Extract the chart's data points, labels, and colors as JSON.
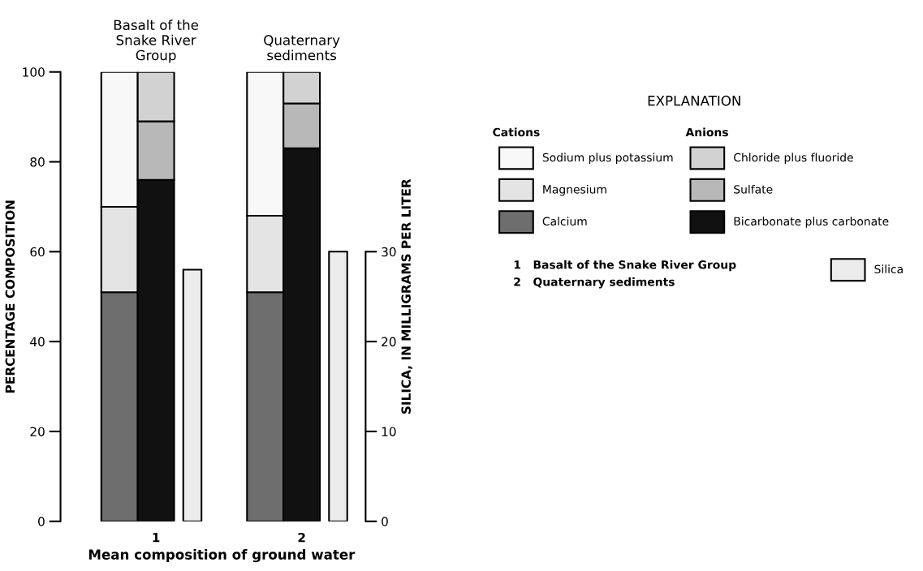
{
  "chart_data": {
    "type": "bar",
    "stacked": true,
    "categories": [
      null,
      "1",
      null,
      null,
      null,
      "2",
      null
    ],
    "series": [
      {
        "name": "Calcium",
        "color": "#6e6e6e",
        "values": [
          51,
          null,
          null,
          null,
          51,
          null,
          null
        ]
      },
      {
        "name": "Magnesium",
        "color": "#e4e4e4",
        "values": [
          19,
          null,
          null,
          null,
          17,
          null,
          null
        ]
      },
      {
        "name": "Sodium plus potassium",
        "color": "#f8f8f8",
        "values": [
          30,
          null,
          null,
          null,
          32,
          null,
          null
        ]
      },
      {
        "name": "Bicarbonate plus carbonate",
        "color": "#111111",
        "values": [
          null,
          76,
          null,
          null,
          null,
          83,
          null
        ]
      },
      {
        "name": "Sulfate",
        "color": "#b8b8b8",
        "values": [
          null,
          13,
          null,
          null,
          null,
          10,
          null
        ]
      },
      {
        "name": "Chloride plus fluoride",
        "color": "#d2d2d2",
        "values": [
          null,
          11,
          null,
          null,
          null,
          7,
          null
        ]
      },
      {
        "name": "Silica",
        "color": "#ececec",
        "axis": "y2",
        "values": [
          null,
          null,
          28,
          null,
          null,
          null,
          30
        ]
      }
    ],
    "xlabel": "Mean composition of ground water",
    "ylabel": "PERCENTAGE COMPOSITION",
    "y2label": "SILICA, IN MILLIGRAMS PER LITER",
    "ylim": [
      0,
      100
    ],
    "yticks": [
      0,
      20,
      40,
      60,
      80,
      100
    ],
    "y2lim": [
      0,
      50
    ],
    "y2ticks": [
      0,
      10,
      20,
      30
    ],
    "legend": "right",
    "legend_title": "EXPLANATION",
    "annotations": [
      {
        "text": "Basalt of the\nSnake River\nGroup",
        "x": "1",
        "y": 100
      },
      {
        "text": "Quaternary\nsediments",
        "x": "2",
        "y": 100
      },
      "Cations",
      "Anions",
      "1   Basalt of the Snake River Group",
      "2   Quaternary sediments"
    ]
  }
}
